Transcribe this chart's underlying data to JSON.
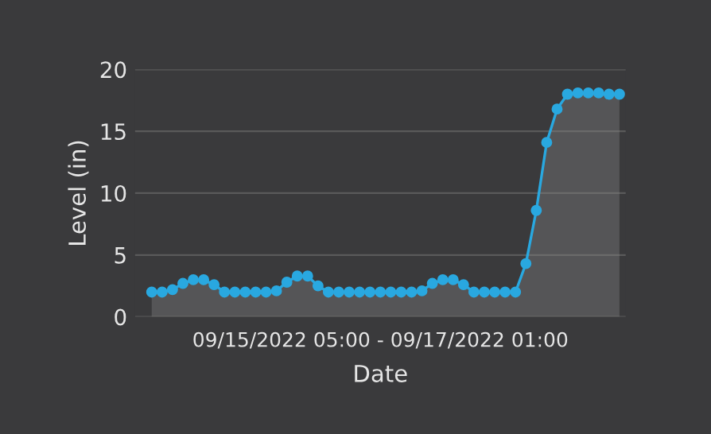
{
  "chart_data": {
    "type": "area",
    "xlabel": "Date",
    "ylabel": "Level (in)",
    "annotations": [
      "09/15/2022 05:00 - 09/17/2022 01:00"
    ],
    "categories": [
      null,
      null,
      null,
      null,
      null,
      null,
      null,
      null,
      null,
      null,
      null,
      null,
      null,
      null,
      null,
      null,
      null,
      null,
      null,
      null,
      null,
      null,
      null,
      null,
      null,
      null,
      null,
      null,
      null,
      null,
      null,
      null,
      null,
      null,
      null,
      null,
      null,
      null,
      null,
      null,
      null,
      null,
      null,
      null,
      null,
      null
    ],
    "series": [
      {
        "color": "#29a8e0",
        "values": [
          2.0,
          2.0,
          2.2,
          2.7,
          3.0,
          3.0,
          2.6,
          2.0,
          2.0,
          2.0,
          2.0,
          2.0,
          2.1,
          2.8,
          3.3,
          3.3,
          2.5,
          2.0,
          2.0,
          2.0,
          2.0,
          2.0,
          2.0,
          2.0,
          2.0,
          2.0,
          2.1,
          2.7,
          3.0,
          3.0,
          2.6,
          2.0,
          2.0,
          2.0,
          2.0,
          2.0,
          4.3,
          8.6,
          14.1,
          16.8,
          18.0,
          18.1,
          18.1,
          18.1,
          18.0,
          18.0
        ]
      }
    ],
    "ylim": [
      0,
      20
    ],
    "yticks": [
      0,
      5,
      10,
      15,
      20
    ],
    "grid": "y",
    "marker": "circle",
    "line_style": "solid"
  }
}
